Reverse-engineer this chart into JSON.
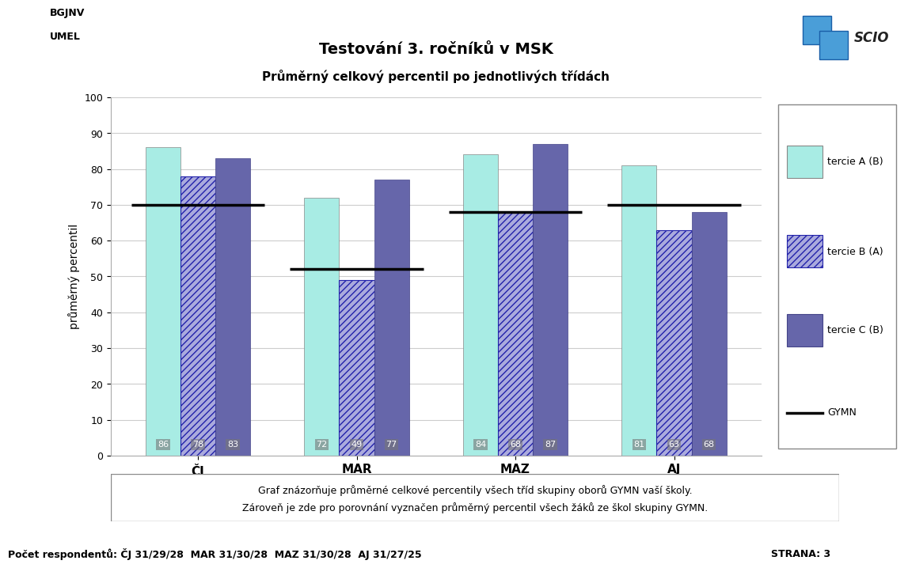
{
  "title1": "Testování 3. ročníků v MSK",
  "title2": "Průměrný celkový percentil po jednotlivých třídách",
  "top_left_line1": "BGJNV",
  "top_left_line2": "UMEL",
  "ylabel": "průměrný percentil",
  "categories": [
    "ČJ",
    "MAR",
    "MAZ",
    "AJ"
  ],
  "series_A": [
    86,
    72,
    84,
    81
  ],
  "series_B": [
    78,
    49,
    68,
    63
  ],
  "series_C": [
    83,
    77,
    87,
    68
  ],
  "gymn_values": [
    70,
    52,
    68,
    70
  ],
  "color_A": "#a8ece4",
  "color_B_face": "#aaaadd",
  "color_B_edge": "#2222aa",
  "color_C": "#6666aa",
  "color_C_edge": "#444488",
  "hatch_B": "////",
  "grid_color": "#cccccc",
  "ylim": [
    0,
    100
  ],
  "yticks": [
    0,
    10,
    20,
    30,
    40,
    50,
    60,
    70,
    80,
    90,
    100
  ],
  "bar_width": 0.22,
  "legend_labels": [
    "tercie A (B)",
    "tercie B (A)",
    "tercie C (B)",
    "GYMN"
  ],
  "footnote_line1": "Graf znázorňuje průměrné celkové percentily všech tříd skupiny oborů GYMN vaší školy.",
  "footnote_line2": "Zároveň je zde pro porovnání vyznačen průměrný percentil všech žáků ze škol skupiny GYMN.",
  "bottom_text": "Počet respondentů: ČJ 31/29/28  MAR 31/30/28  MAZ 31/30/28  AJ 31/27/25",
  "strana_text": "STRANA: 3"
}
